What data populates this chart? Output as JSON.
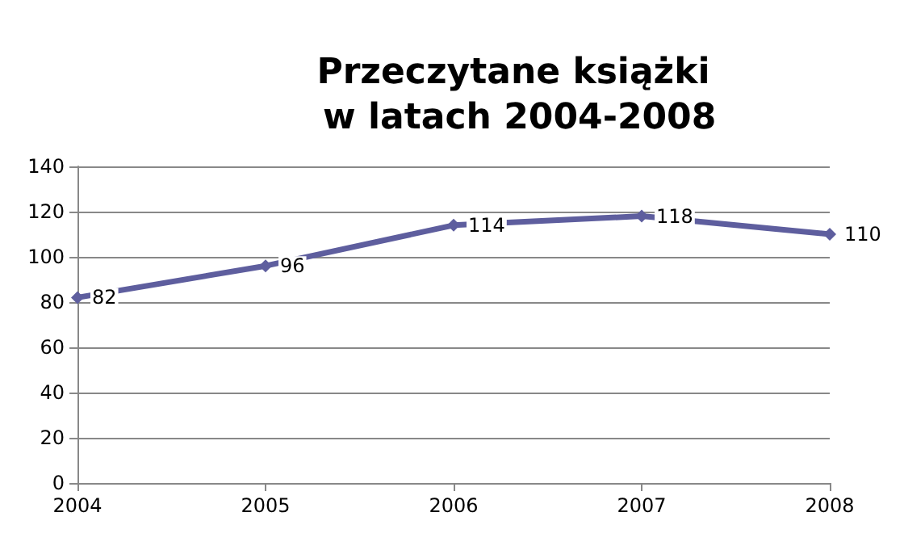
{
  "chart_data": {
    "type": "line",
    "title": "Przeczytane książki\n w latach 2004-2008",
    "x": [
      2004,
      2005,
      2006,
      2007,
      2008
    ],
    "series": [
      {
        "color": "#5e5e9e",
        "values": [
          82,
          96,
          114,
          118,
          110
        ]
      }
    ],
    "xlim": [
      2004,
      2008
    ],
    "xticks": [
      2004,
      2005,
      2006,
      2007,
      2008
    ],
    "ylim": [
      0,
      140
    ],
    "yticks": [
      0,
      20,
      40,
      60,
      80,
      100,
      120,
      140
    ],
    "grid": "y",
    "marker": "diamond",
    "line_style": "solid",
    "data_labels": true
  }
}
